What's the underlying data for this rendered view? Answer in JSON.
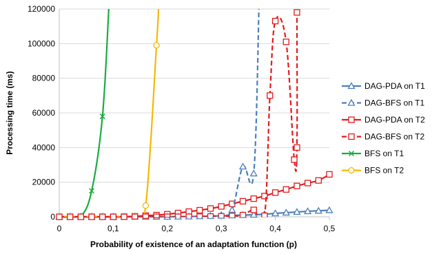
{
  "chart_data": {
    "type": "line",
    "title": "",
    "xlabel": "Probability of existence of an adaptation function (p)",
    "ylabel": "Processing time (ms)",
    "xlim": [
      0,
      0.5
    ],
    "ylim": [
      0,
      120000
    ],
    "x_ticks": [
      0,
      0.1,
      0.2,
      0.3,
      0.4,
      0.5
    ],
    "x_tick_labels": [
      "0",
      "0,1",
      "0,2",
      "0,3",
      "0,4",
      "0,5"
    ],
    "y_ticks": [
      0,
      20000,
      40000,
      60000,
      80000,
      100000,
      120000
    ],
    "y_tick_labels": [
      "0",
      "20000",
      "40000",
      "60000",
      "80000",
      "100000",
      "120000"
    ],
    "grid": "horizontal",
    "legend_position": "right",
    "series": [
      {
        "name": "DAG-PDA on T1",
        "color": "#4a7ebb",
        "marker": "triangle",
        "line": "solid",
        "clip": false,
        "x": [
          0,
          0.02,
          0.04,
          0.06,
          0.08,
          0.1,
          0.12,
          0.14,
          0.16,
          0.18,
          0.2,
          0.22,
          0.24,
          0.26,
          0.28,
          0.3,
          0.32,
          0.34,
          0.36,
          0.38,
          0.4,
          0.42,
          0.44,
          0.46,
          0.48,
          0.5
        ],
        "y": [
          0,
          0,
          0,
          0,
          0,
          0,
          0,
          0,
          0,
          0,
          0,
          100,
          200,
          300,
          400,
          600,
          800,
          1000,
          1200,
          1500,
          2000,
          2400,
          2800,
          3200,
          3500,
          3800
        ]
      },
      {
        "name": "DAG-BFS on T1",
        "color": "#4a7ebb",
        "marker": "triangle",
        "line": "dashed",
        "clip": true,
        "x": [
          0,
          0.02,
          0.04,
          0.06,
          0.08,
          0.1,
          0.12,
          0.14,
          0.16,
          0.18,
          0.2,
          0.22,
          0.24,
          0.26,
          0.28,
          0.3,
          0.32,
          0.34,
          0.36,
          0.37
        ],
        "y": [
          0,
          0,
          0,
          0,
          0,
          0,
          0,
          0,
          0,
          0,
          0,
          100,
          200,
          300,
          500,
          1000,
          4000,
          29000,
          25000,
          125000
        ]
      },
      {
        "name": "DAG-PDA on T2",
        "color": "#e31a1c",
        "marker": "square",
        "line": "solid",
        "clip": false,
        "x": [
          0,
          0.02,
          0.04,
          0.06,
          0.08,
          0.1,
          0.12,
          0.14,
          0.16,
          0.18,
          0.2,
          0.22,
          0.24,
          0.26,
          0.28,
          0.3,
          0.32,
          0.34,
          0.36,
          0.38,
          0.4,
          0.42,
          0.44,
          0.46,
          0.48,
          0.5
        ],
        "y": [
          0,
          0,
          0,
          0,
          0,
          0,
          100,
          300,
          700,
          1000,
          1500,
          2200,
          3000,
          3800,
          4800,
          6000,
          7500,
          9000,
          10500,
          12000,
          14000,
          15800,
          17800,
          19500,
          21000,
          24500
        ]
      },
      {
        "name": "DAG-BFS on T2",
        "color": "#e31a1c",
        "marker": "square",
        "line": "dashed",
        "clip": true,
        "x": [
          0,
          0.02,
          0.04,
          0.06,
          0.08,
          0.1,
          0.12,
          0.14,
          0.16,
          0.18,
          0.2,
          0.22,
          0.24,
          0.26,
          0.28,
          0.3,
          0.32,
          0.34,
          0.36,
          0.38,
          0.39,
          0.4,
          0.42,
          0.435,
          0.44,
          0.44
        ],
        "y": [
          0,
          0,
          0,
          0,
          0,
          0,
          0,
          0,
          0,
          0,
          0,
          0,
          0,
          100,
          200,
          300,
          500,
          1000,
          4000,
          600,
          70000,
          113000,
          101000,
          33000,
          40000,
          118000
        ]
      },
      {
        "name": "BFS on T1",
        "color": "#1aab40",
        "marker": "x",
        "line": "solid",
        "clip": true,
        "x": [
          0,
          0.02,
          0.04,
          0.06,
          0.08,
          0.092
        ],
        "y": [
          0,
          0,
          200,
          15000,
          58000,
          122000
        ]
      },
      {
        "name": "BFS on T2",
        "color": "#f5b800",
        "marker": "circle",
        "line": "solid",
        "clip": true,
        "x": [
          0,
          0.02,
          0.04,
          0.06,
          0.08,
          0.1,
          0.12,
          0.14,
          0.16,
          0.18,
          0.184
        ],
        "y": [
          0,
          0,
          0,
          0,
          0,
          0,
          0,
          600,
          6500,
          99000,
          122000
        ]
      }
    ]
  }
}
